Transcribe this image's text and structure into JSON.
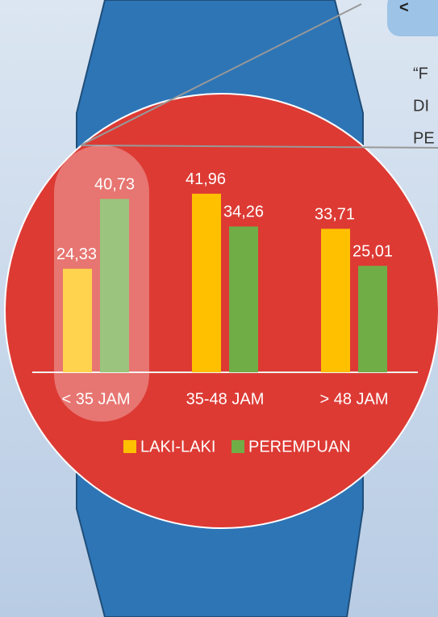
{
  "chart_data": {
    "type": "bar",
    "categories": [
      "< 35 JAM",
      "35-48 JAM",
      "> 48 JAM"
    ],
    "series": [
      {
        "name": "LAKI-LAKI",
        "color": "#ffc000",
        "values": [
          24.33,
          41.96,
          33.71
        ],
        "value_labels": [
          "24,33",
          "41,96",
          "33,71"
        ]
      },
      {
        "name": "PEREMPUAN",
        "color": "#70ad47",
        "values": [
          40.73,
          34.26,
          25.01
        ],
        "value_labels": [
          "40,73",
          "34,26",
          "25,01"
        ]
      }
    ]
  },
  "callout": {
    "symbol": "<",
    "lines": [
      "“F",
      "DI",
      "PE"
    ]
  }
}
